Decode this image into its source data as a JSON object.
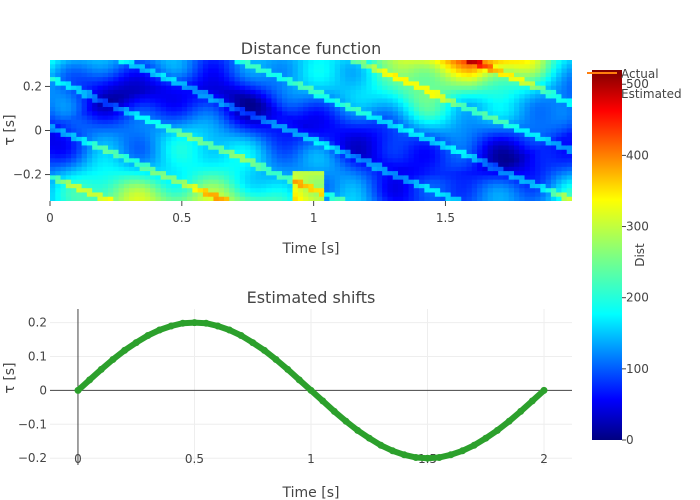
{
  "chart_data": [
    {
      "type": "heatmap",
      "title": "Distance function",
      "xlabel": "Time [s]",
      "ylabel": "τ [s]",
      "xlim": [
        0,
        1.98
      ],
      "ylim": [
        -0.32,
        0.32
      ],
      "x_ticks": [
        {
          "value": 0,
          "label": "0"
        },
        {
          "value": 0.5,
          "label": "0.5"
        },
        {
          "value": 1,
          "label": "1"
        },
        {
          "value": 1.5,
          "label": "1.5"
        }
      ],
      "y_ticks": [
        {
          "value": 0.2,
          "label": "0.2"
        },
        {
          "value": 0,
          "label": "0"
        },
        {
          "value": -0.2,
          "label": "−0.2"
        }
      ],
      "colorbar": {
        "title": "Dist",
        "range": [
          0,
          520
        ],
        "colorscale": "jet",
        "ticks": [
          {
            "value": 0,
            "label": "0"
          },
          {
            "value": 100,
            "label": "100"
          },
          {
            "value": 200,
            "label": "200"
          },
          {
            "value": 300,
            "label": "300"
          },
          {
            "value": 400,
            "label": "400"
          },
          {
            "value": 500,
            "label": "500"
          }
        ]
      },
      "legend": {
        "placement": "top-right",
        "entries": [
          {
            "name": "Actual",
            "color": "#ff7f0e"
          },
          {
            "name": "Estimated",
            "color": "#2ca02c"
          }
        ]
      }
    },
    {
      "type": "scatter",
      "title": "Estimated shifts",
      "xlabel": "Time [s]",
      "ylabel": "τ [s]",
      "xlim": [
        -0.12,
        2.12
      ],
      "ylim": [
        -0.22,
        0.24
      ],
      "x_ticks": [
        {
          "value": 0,
          "label": "0"
        },
        {
          "value": 0.5,
          "label": "0.5"
        },
        {
          "value": 1,
          "label": "1"
        },
        {
          "value": 1.5,
          "label": "1.5"
        },
        {
          "value": 2,
          "label": "2"
        }
      ],
      "y_ticks": [
        {
          "value": 0.2,
          "label": "0.2"
        },
        {
          "value": 0.1,
          "label": "0.1"
        },
        {
          "value": 0,
          "label": "0"
        },
        {
          "value": -0.1,
          "label": "−0.1"
        },
        {
          "value": -0.2,
          "label": "−0.2"
        }
      ],
      "grid": true,
      "series": [
        {
          "name": "Estimated",
          "color": "#2ca02c",
          "x": [
            0,
            0.05,
            0.1,
            0.15,
            0.2,
            0.25,
            0.3,
            0.35,
            0.4,
            0.45,
            0.5,
            0.55,
            0.6,
            0.65,
            0.7,
            0.75,
            0.8,
            0.85,
            0.9,
            0.95,
            1.0,
            1.05,
            1.1,
            1.15,
            1.2,
            1.25,
            1.3,
            1.35,
            1.4,
            1.45,
            1.5,
            1.55,
            1.6,
            1.65,
            1.7,
            1.75,
            1.8,
            1.85,
            1.9,
            1.95,
            2.0
          ],
          "y": [
            0,
            0.031,
            0.062,
            0.091,
            0.118,
            0.141,
            0.162,
            0.178,
            0.19,
            0.198,
            0.2,
            0.198,
            0.19,
            0.178,
            0.162,
            0.141,
            0.118,
            0.091,
            0.062,
            0.031,
            0,
            -0.031,
            -0.062,
            -0.091,
            -0.118,
            -0.141,
            -0.162,
            -0.178,
            -0.19,
            -0.198,
            -0.2,
            -0.198,
            -0.19,
            -0.178,
            -0.162,
            -0.141,
            -0.118,
            -0.091,
            -0.062,
            -0.031,
            0
          ]
        }
      ]
    }
  ]
}
